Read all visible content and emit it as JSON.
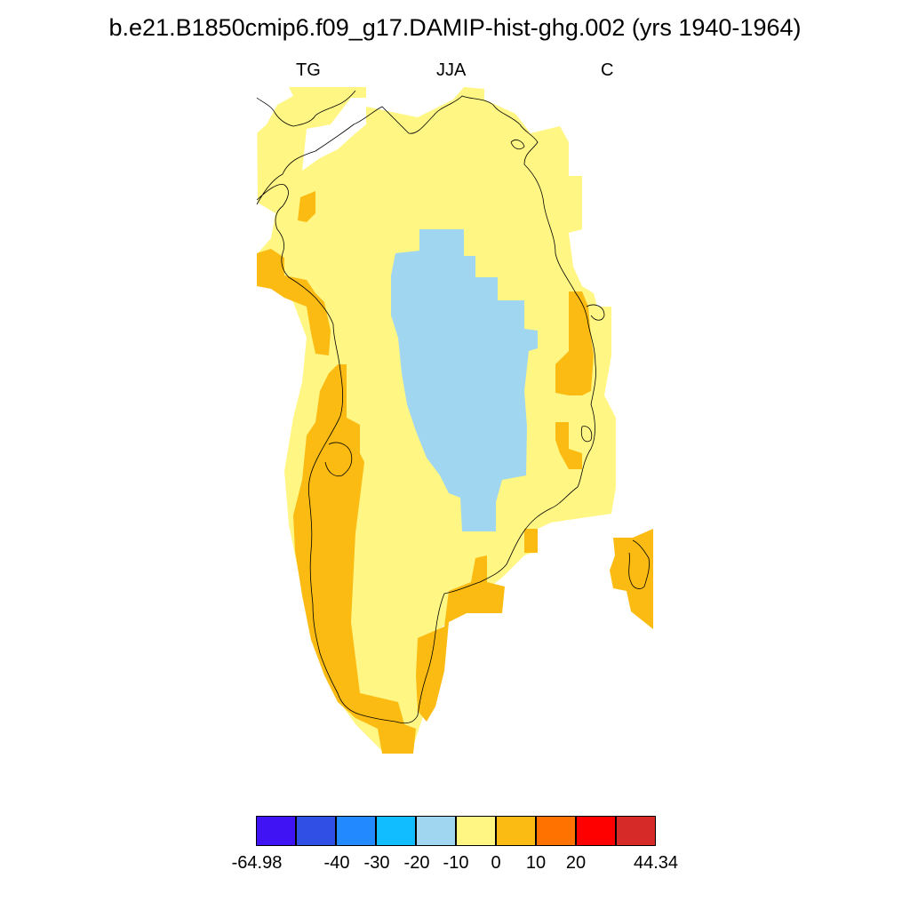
{
  "title": "b.e21.B1850cmip6.f09_g17.DAMIP-hist-ghg.002 (yrs 1940-1964)",
  "subtitles": {
    "left": "TG",
    "center": "JJA",
    "right": "C"
  },
  "colorbar": {
    "colors": [
      "#4013f5",
      "#2f4fe5",
      "#2289ff",
      "#12bdff",
      "#a0d6ef",
      "#fff683",
      "#fcbb13",
      "#ff7200",
      "#ff0000",
      "#d52a28"
    ],
    "labels": [
      "-64.98",
      "-40",
      "-30",
      "-20",
      "-10",
      "0",
      "10",
      "20",
      "44.34"
    ]
  },
  "map": {
    "region": "Greenland",
    "fill_colors": {
      "base": "#fff683",
      "interior": "#a0d6ef",
      "coast": "#fcbb13"
    }
  }
}
